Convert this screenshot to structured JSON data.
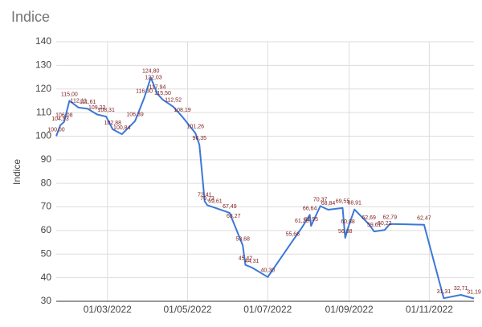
{
  "chart_data": {
    "type": "line",
    "title": "Indice",
    "y_label": "Indice",
    "x": [
      "2022-01-21",
      "2022-01-24",
      "2022-01-27",
      "2022-01-31",
      "2022-02-07",
      "2022-02-14",
      "2022-02-21",
      "2022-02-28",
      "2022-03-05",
      "2022-03-12",
      "2022-03-22",
      "2022-03-29",
      "2022-04-03",
      "2022-04-05",
      "2022-04-08",
      "2022-04-12",
      "2022-04-20",
      "2022-04-27",
      "2022-05-07",
      "2022-05-10",
      "2022-05-14",
      "2022-05-16",
      "2022-05-22",
      "2022-06-02",
      "2022-06-05",
      "2022-06-12",
      "2022-06-14",
      "2022-06-19",
      "2022-07-01",
      "2022-07-20",
      "2022-07-27",
      "2022-08-02",
      "2022-08-03",
      "2022-08-10",
      "2022-08-16",
      "2022-08-27",
      "2022-08-29",
      "2022-08-31",
      "2022-09-05",
      "2022-09-16",
      "2022-09-20",
      "2022-09-28",
      "2022-10-02",
      "2022-10-28",
      "2022-11-12",
      "2022-11-25",
      "2022-12-05"
    ],
    "series": [
      {
        "name": "Indice",
        "color": "#3c78d8",
        "values": [
          100.0,
          104.53,
          106.08,
          115.0,
          112.11,
          111.61,
          109.22,
          108.31,
          102.88,
          100.84,
          106.39,
          116.3,
          124.8,
          122.03,
          117.94,
          115.5,
          112.52,
          108.19,
          101.26,
          96.35,
          72.41,
          70.73,
          69.61,
          67.49,
          63.27,
          53.68,
          45.42,
          44.31,
          40.3,
          55.66,
          61.23,
          66.64,
          61.95,
          70.37,
          68.84,
          69.55,
          56.88,
          60.88,
          68.91,
          62.69,
          59.61,
          60.22,
          62.79,
          62.47,
          31.31,
          32.71,
          31.19
        ],
        "value_labels": [
          "100,00",
          "104,53",
          "106,08",
          "115,00",
          "112,11",
          "111,61",
          "109,22",
          "108,31",
          "102,88",
          "100,84",
          "106,39",
          "116,30",
          "124,80",
          "122,03",
          "117,94",
          "115,50",
          "112,52",
          "108,19",
          "101,26",
          "96,35",
          "72,41",
          "70,73",
          "69,61",
          "67,49",
          "63,27",
          "53,68",
          "45,42",
          "44,31",
          "40,30",
          "55,66",
          "61,23",
          "66,64",
          "61,95",
          "70,37",
          "68,84",
          "69,55",
          "56,88",
          "60,88",
          "68,91",
          "62,69",
          "59,61",
          "60,22",
          "62,79",
          "62,47",
          "31,31",
          "32,71",
          "31,19"
        ]
      }
    ],
    "xlim": [
      "2022-01-21",
      "2022-12-05"
    ],
    "xticks": [
      {
        "value": "2022-03-01",
        "label": "01/03/2022"
      },
      {
        "value": "2022-05-01",
        "label": "01/05/2022"
      },
      {
        "value": "2022-07-01",
        "label": "01/07/2022"
      },
      {
        "value": "2022-09-01",
        "label": "01/09/2022"
      },
      {
        "value": "2022-11-01",
        "label": "01/11/2022"
      }
    ],
    "ylim": [
      30,
      140
    ],
    "yticks": [
      30,
      40,
      50,
      60,
      70,
      80,
      90,
      100,
      110,
      120,
      130,
      140
    ],
    "grid": true
  }
}
